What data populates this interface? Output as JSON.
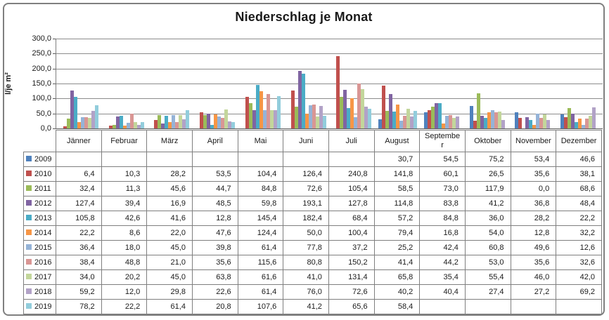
{
  "chart_data": {
    "type": "bar",
    "title": "Niederschlag je Monat",
    "ylabel": "l/je m²",
    "xlabel": "",
    "ylim": [
      0,
      300
    ],
    "ytick_step": 50,
    "grid": true,
    "legend_position": "table-left",
    "decimal_separator": ",",
    "categories": [
      "Jänner",
      "Februar",
      "März",
      "April",
      "Mai",
      "Juni",
      "Juli",
      "August",
      "September",
      "Oktober",
      "November",
      "Dezember"
    ],
    "series": [
      {
        "name": "2009",
        "color": "#4F81BD",
        "values": [
          null,
          null,
          null,
          null,
          null,
          null,
          null,
          30.7,
          54.5,
          75.2,
          53.4,
          46.6
        ]
      },
      {
        "name": "2010",
        "color": "#C0504D",
        "values": [
          6.4,
          10.3,
          28.2,
          53.5,
          104.4,
          126.4,
          240.8,
          141.8,
          60.1,
          26.5,
          35.6,
          38.1
        ]
      },
      {
        "name": "2011",
        "color": "#9BBB59",
        "values": [
          32.4,
          11.3,
          45.6,
          44.7,
          84.8,
          72.6,
          105.4,
          58.5,
          73.0,
          117.9,
          0.0,
          68.6
        ]
      },
      {
        "name": "2012",
        "color": "#8064A2",
        "values": [
          127.4,
          39.4,
          16.9,
          48.5,
          59.8,
          193.1,
          127.8,
          114.8,
          83.8,
          41.2,
          36.8,
          48.4
        ]
      },
      {
        "name": "2013",
        "color": "#4BACC6",
        "values": [
          105.8,
          42.6,
          41.6,
          12.8,
          145.4,
          182.4,
          68.4,
          57.2,
          84.8,
          36.0,
          28.2,
          22.2
        ]
      },
      {
        "name": "2014",
        "color": "#F79646",
        "values": [
          22.2,
          8.6,
          22.0,
          47.6,
          124.4,
          50.0,
          100.4,
          79.4,
          16.8,
          54.0,
          12.8,
          32.2
        ]
      },
      {
        "name": "2015",
        "color": "#95B3D7",
        "values": [
          36.4,
          18.0,
          45.0,
          39.8,
          61.4,
          77.8,
          37.2,
          25.2,
          42.4,
          60.8,
          49.6,
          12.6
        ]
      },
      {
        "name": "2016",
        "color": "#D99694",
        "values": [
          38.4,
          48.8,
          21.0,
          35.6,
          115.6,
          80.8,
          150.2,
          41.4,
          44.2,
          53.0,
          35.6,
          32.6
        ]
      },
      {
        "name": "2017",
        "color": "#C3D69B",
        "values": [
          34.0,
          20.2,
          45.0,
          63.8,
          61.6,
          41.0,
          131.4,
          65.8,
          35.4,
          55.4,
          46.0,
          42.0
        ]
      },
      {
        "name": "2018",
        "color": "#B2A2C7",
        "values": [
          59.2,
          12.0,
          29.8,
          22.6,
          61.4,
          76.0,
          72.6,
          40.2,
          40.4,
          27.4,
          27.2,
          69.2
        ]
      },
      {
        "name": "2019",
        "color": "#92CDDC",
        "values": [
          78.2,
          22.2,
          61.4,
          20.8,
          107.6,
          41.2,
          65.6,
          58.4,
          null,
          null,
          null,
          null
        ]
      }
    ]
  }
}
